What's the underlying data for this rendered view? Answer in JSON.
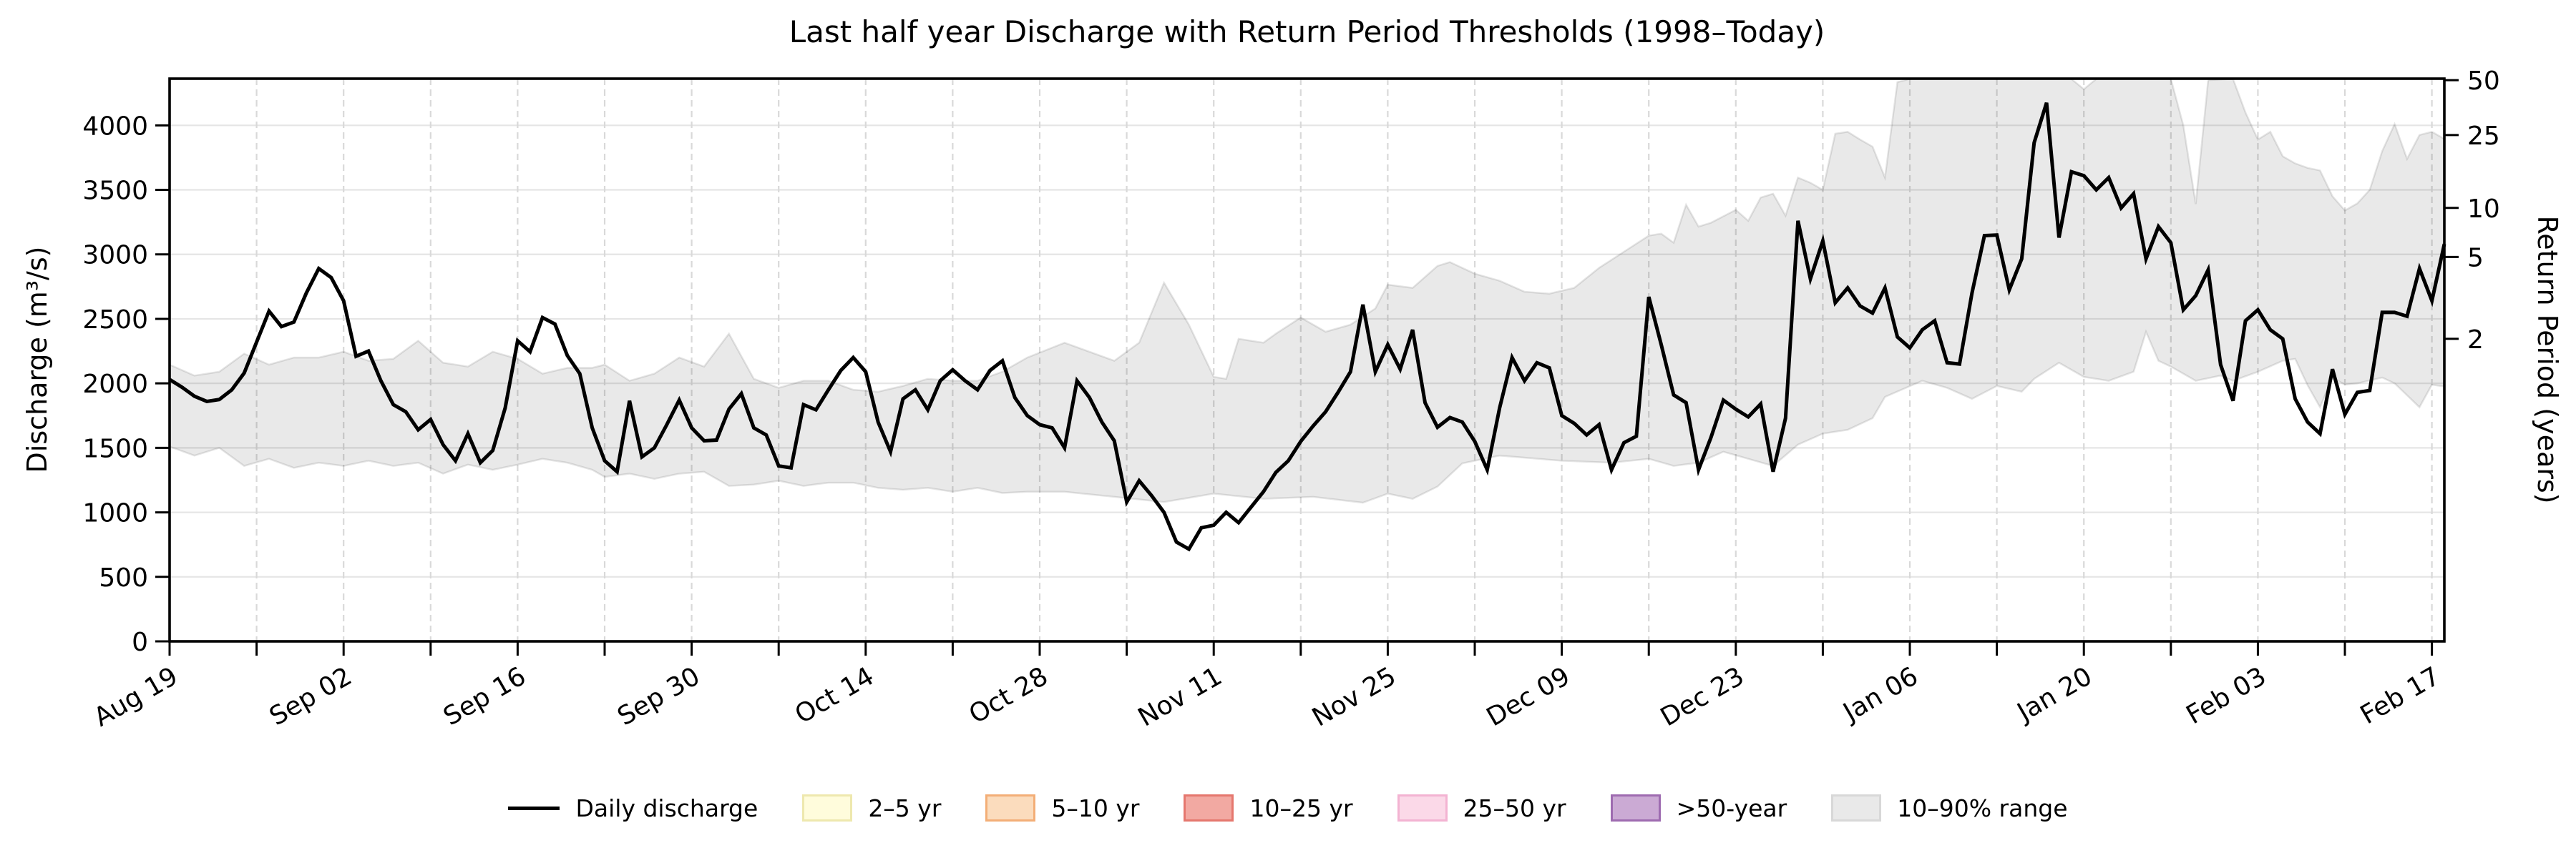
{
  "chart_data": {
    "type": "line",
    "title": "Last half year Discharge with Return Period Thresholds (1998–Today)",
    "ylabel_left": "Discharge (m³/s)",
    "ylabel_right": "Return Period (years)",
    "grid": {
      "horizontal": "on-solid",
      "vertical": "on-dashed-weekly"
    },
    "ylim_left": [
      0,
      4362
    ],
    "yticks_left": [
      0,
      500,
      1000,
      1500,
      2000,
      2500,
      3000,
      3500,
      4000
    ],
    "yticks_right": [
      {
        "label": "50",
        "discharge_equivalent": 4350
      },
      {
        "label": "25",
        "discharge_equivalent": 3925
      },
      {
        "label": "10",
        "discharge_equivalent": 3360
      },
      {
        "label": "5",
        "discharge_equivalent": 2980
      },
      {
        "label": "2",
        "discharge_equivalent": 2345
      }
    ],
    "x_total_days": 183,
    "x_minor_tick_every_days": 7,
    "x_major_ticks": [
      {
        "day": 0,
        "label": "Aug 19"
      },
      {
        "day": 14,
        "label": "Sep 02"
      },
      {
        "day": 28,
        "label": "Sep 16"
      },
      {
        "day": 42,
        "label": "Sep 30"
      },
      {
        "day": 56,
        "label": "Oct 14"
      },
      {
        "day": 70,
        "label": "Oct 28"
      },
      {
        "day": 84,
        "label": "Nov 11"
      },
      {
        "day": 98,
        "label": "Nov 25"
      },
      {
        "day": 112,
        "label": "Dec 09"
      },
      {
        "day": 126,
        "label": "Dec 23"
      },
      {
        "day": 140,
        "label": "Jan 06"
      },
      {
        "day": 154,
        "label": "Jan 20"
      },
      {
        "day": 168,
        "label": "Feb 03"
      },
      {
        "day": 182,
        "label": "Feb 17"
      }
    ],
    "series": {
      "name": "Daily discharge",
      "color": "#000000",
      "start_day": 0,
      "values": [
        2030,
        1970,
        1900,
        1860,
        1875,
        1950,
        2080,
        2320,
        2560,
        2440,
        2475,
        2700,
        2890,
        2820,
        2640,
        2210,
        2250,
        2020,
        1835,
        1780,
        1640,
        1720,
        1525,
        1400,
        1610,
        1385,
        1480,
        1810,
        2330,
        2245,
        2510,
        2460,
        2215,
        2075,
        1655,
        1400,
        1315,
        1865,
        1430,
        1500,
        1680,
        1870,
        1655,
        1555,
        1560,
        1800,
        1920,
        1655,
        1600,
        1360,
        1345,
        1835,
        1795,
        1950,
        2100,
        2200,
        2090,
        1700,
        1470,
        1880,
        1950,
        1795,
        2020,
        2105,
        2020,
        1950,
        2100,
        2175,
        1890,
        1750,
        1680,
        1655,
        1500,
        2020,
        1890,
        1700,
        1555,
        1080,
        1245,
        1130,
        1000,
        770,
        715,
        880,
        900,
        1000,
        920,
        1040,
        1160,
        1310,
        1400,
        1550,
        1670,
        1780,
        1930,
        2090,
        2610,
        2090,
        2300,
        2110,
        2415,
        1850,
        1660,
        1735,
        1700,
        1550,
        1330,
        1810,
        2200,
        2020,
        2160,
        2120,
        1750,
        1690,
        1600,
        1680,
        1330,
        1540,
        1590,
        2670,
        2300,
        1910,
        1850,
        1330,
        1580,
        1870,
        1800,
        1740,
        1840,
        1315,
        1730,
        3260,
        2810,
        3105,
        2625,
        2740,
        2600,
        2545,
        2740,
        2360,
        2275,
        2415,
        2485,
        2160,
        2150,
        2700,
        3145,
        3150,
        2725,
        2965,
        3865,
        4175,
        3130,
        3640,
        3610,
        3500,
        3595,
        3360,
        3470,
        2965,
        3215,
        3090,
        2570,
        2680,
        2880,
        2145,
        1865,
        2485,
        2570,
        2415,
        2345,
        1880,
        1700,
        1610,
        2110,
        1760,
        1930,
        1945,
        2550,
        2550,
        2520,
        2890,
        2640,
        3080
      ]
    },
    "band": {
      "name": "10–90% range",
      "fill": "rgba(0,0,0,0.088)",
      "edge": "rgba(0,0,0,0.10)",
      "points_high": [
        [
          0,
          2145
        ],
        [
          2,
          2060
        ],
        [
          4,
          2090
        ],
        [
          6,
          2230
        ],
        [
          8,
          2145
        ],
        [
          10,
          2200
        ],
        [
          12,
          2200
        ],
        [
          14,
          2245
        ],
        [
          16,
          2175
        ],
        [
          18,
          2190
        ],
        [
          20,
          2330
        ],
        [
          22,
          2160
        ],
        [
          24,
          2130
        ],
        [
          26,
          2245
        ],
        [
          28,
          2190
        ],
        [
          30,
          2075
        ],
        [
          32,
          2120
        ],
        [
          34,
          2120
        ],
        [
          35,
          2145
        ],
        [
          37,
          2020
        ],
        [
          39,
          2075
        ],
        [
          41,
          2200
        ],
        [
          43,
          2130
        ],
        [
          45,
          2385
        ],
        [
          47,
          2035
        ],
        [
          49,
          1965
        ],
        [
          51,
          2020
        ],
        [
          53,
          2020
        ],
        [
          55,
          1950
        ],
        [
          57,
          1935
        ],
        [
          59,
          1980
        ],
        [
          61,
          2035
        ],
        [
          63,
          2020
        ],
        [
          65,
          2020
        ],
        [
          67,
          2090
        ],
        [
          69,
          2200
        ],
        [
          72,
          2315
        ],
        [
          76,
          2175
        ],
        [
          78,
          2315
        ],
        [
          80,
          2780
        ],
        [
          82,
          2455
        ],
        [
          84,
          2050
        ],
        [
          85,
          2035
        ],
        [
          86,
          2345
        ],
        [
          88,
          2315
        ],
        [
          89,
          2385
        ],
        [
          91,
          2510
        ],
        [
          93,
          2400
        ],
        [
          95,
          2455
        ],
        [
          97,
          2580
        ],
        [
          98,
          2765
        ],
        [
          100,
          2740
        ],
        [
          102,
          2910
        ],
        [
          103,
          2940
        ],
        [
          105,
          2850
        ],
        [
          107,
          2795
        ],
        [
          109,
          2710
        ],
        [
          111,
          2695
        ],
        [
          113,
          2740
        ],
        [
          115,
          2895
        ],
        [
          117,
          3020
        ],
        [
          119,
          3145
        ],
        [
          120,
          3160
        ],
        [
          121,
          3090
        ],
        [
          122,
          3385
        ],
        [
          123,
          3215
        ],
        [
          124,
          3245
        ],
        [
          126,
          3345
        ],
        [
          127,
          3260
        ],
        [
          128,
          3440
        ],
        [
          129,
          3470
        ],
        [
          130,
          3300
        ],
        [
          131,
          3595
        ],
        [
          132,
          3555
        ],
        [
          133,
          3500
        ],
        [
          134,
          3935
        ],
        [
          135,
          3950
        ],
        [
          136,
          3890
        ],
        [
          137,
          3835
        ],
        [
          138,
          3595
        ],
        [
          139,
          4335
        ],
        [
          140,
          4360
        ],
        [
          153,
          4360
        ],
        [
          154,
          4280
        ],
        [
          155,
          4360
        ],
        [
          161,
          4360
        ],
        [
          162,
          4000
        ],
        [
          163,
          3390
        ],
        [
          164,
          4350
        ],
        [
          166,
          4360
        ],
        [
          167,
          4100
        ],
        [
          168,
          3890
        ],
        [
          169,
          3950
        ],
        [
          170,
          3760
        ],
        [
          171,
          3705
        ],
        [
          172,
          3670
        ],
        [
          173,
          3650
        ],
        [
          174,
          3450
        ],
        [
          175,
          3340
        ],
        [
          176,
          3395
        ],
        [
          177,
          3500
        ],
        [
          178,
          3800
        ],
        [
          179,
          4010
        ],
        [
          180,
          3740
        ],
        [
          181,
          3925
        ],
        [
          182,
          3950
        ],
        [
          183,
          3895
        ]
      ],
      "points_low": [
        [
          0,
          1510
        ],
        [
          2,
          1440
        ],
        [
          4,
          1500
        ],
        [
          6,
          1360
        ],
        [
          8,
          1415
        ],
        [
          10,
          1345
        ],
        [
          12,
          1385
        ],
        [
          14,
          1360
        ],
        [
          16,
          1400
        ],
        [
          18,
          1360
        ],
        [
          20,
          1385
        ],
        [
          22,
          1300
        ],
        [
          24,
          1370
        ],
        [
          26,
          1330
        ],
        [
          28,
          1370
        ],
        [
          30,
          1415
        ],
        [
          32,
          1385
        ],
        [
          34,
          1330
        ],
        [
          35,
          1275
        ],
        [
          37,
          1300
        ],
        [
          39,
          1260
        ],
        [
          41,
          1300
        ],
        [
          43,
          1315
        ],
        [
          45,
          1205
        ],
        [
          47,
          1215
        ],
        [
          49,
          1245
        ],
        [
          51,
          1205
        ],
        [
          53,
          1230
        ],
        [
          55,
          1230
        ],
        [
          57,
          1190
        ],
        [
          59,
          1175
        ],
        [
          61,
          1190
        ],
        [
          63,
          1160
        ],
        [
          65,
          1190
        ],
        [
          67,
          1150
        ],
        [
          69,
          1160
        ],
        [
          72,
          1160
        ],
        [
          76,
          1120
        ],
        [
          80,
          1080
        ],
        [
          84,
          1145
        ],
        [
          88,
          1105
        ],
        [
          92,
          1120
        ],
        [
          96,
          1075
        ],
        [
          98,
          1145
        ],
        [
          100,
          1105
        ],
        [
          102,
          1200
        ],
        [
          104,
          1380
        ],
        [
          107,
          1440
        ],
        [
          112,
          1400
        ],
        [
          116,
          1385
        ],
        [
          119,
          1415
        ],
        [
          121,
          1360
        ],
        [
          123,
          1385
        ],
        [
          125,
          1470
        ],
        [
          127,
          1415
        ],
        [
          129,
          1360
        ],
        [
          131,
          1525
        ],
        [
          133,
          1610
        ],
        [
          135,
          1640
        ],
        [
          137,
          1730
        ],
        [
          138,
          1895
        ],
        [
          141,
          2020
        ],
        [
          143,
          1965
        ],
        [
          145,
          1880
        ],
        [
          147,
          1980
        ],
        [
          149,
          1935
        ],
        [
          150,
          2035
        ],
        [
          152,
          2160
        ],
        [
          154,
          2050
        ],
        [
          156,
          2020
        ],
        [
          158,
          2090
        ],
        [
          159,
          2400
        ],
        [
          160,
          2175
        ],
        [
          161,
          2130
        ],
        [
          163,
          2020
        ],
        [
          165,
          2060
        ],
        [
          166,
          2020
        ],
        [
          168,
          2090
        ],
        [
          170,
          2175
        ],
        [
          171,
          2190
        ],
        [
          172,
          1985
        ],
        [
          173,
          1815
        ],
        [
          174,
          2045
        ],
        [
          175,
          1990
        ],
        [
          176,
          2000
        ],
        [
          178,
          2045
        ],
        [
          179,
          2000
        ],
        [
          181,
          1815
        ],
        [
          182,
          1990
        ],
        [
          183,
          1975
        ]
      ]
    },
    "legend": [
      {
        "kind": "line",
        "label": "Daily discharge",
        "color": "#000000"
      },
      {
        "kind": "patch",
        "label": "2–5 yr",
        "fill": "#fffcdc",
        "edge": "#eee8ae"
      },
      {
        "kind": "patch",
        "label": "5–10 yr",
        "fill": "#fbdcbd",
        "edge": "#f3ae77"
      },
      {
        "kind": "patch",
        "label": "10–25 yr",
        "fill": "#f2a9a2",
        "edge": "#e5776e"
      },
      {
        "kind": "patch",
        "label": "25–50 yr",
        "fill": "#fbd9e8",
        "edge": "#f3b3d2"
      },
      {
        "kind": "patch",
        "label": ">50-year",
        "fill": "#cbaad4",
        "edge": "#9e6bb0"
      },
      {
        "kind": "patch",
        "label": "10–90% range",
        "fill": "#e9e9e9",
        "edge": "#d8d8d8"
      }
    ],
    "colors": {
      "axis": "#000000",
      "grid_horizontal": "#e5e5e5",
      "grid_vertical": "#d9d9d9",
      "background": "#ffffff"
    }
  }
}
